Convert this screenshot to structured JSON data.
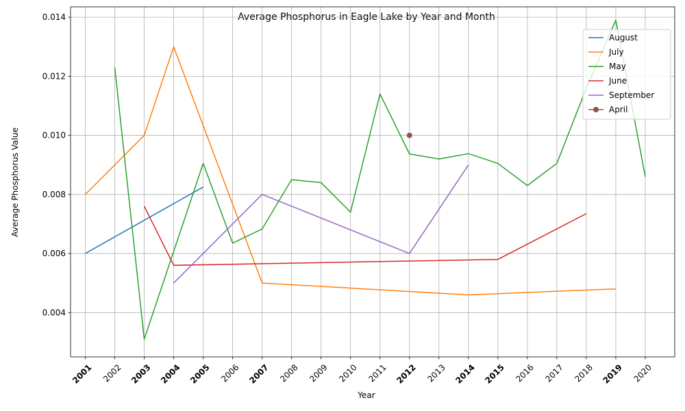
{
  "chart_data": {
    "type": "line",
    "title": "Average Phosphorus in Eagle Lake by Year and Month",
    "xlabel": "Year",
    "ylabel": "Average Phosphorus Value",
    "x_ticks": [
      "2001",
      "2002",
      "2003",
      "2004",
      "2005",
      "2006",
      "2007",
      "2008",
      "2009",
      "2010",
      "2011",
      "2012",
      "2013",
      "2014",
      "2015",
      "2016",
      "2017",
      "2018",
      "2019",
      "2020"
    ],
    "bold_years": [
      "2001",
      "2003",
      "2004",
      "2005",
      "2007",
      "2012",
      "2014",
      "2015",
      "2019"
    ],
    "xlim": [
      2000.5,
      2021
    ],
    "ylim": [
      0.0025,
      0.01435
    ],
    "y_ticks": [
      "0.004",
      "0.006",
      "0.008",
      "0.010",
      "0.012",
      "0.014"
    ],
    "y_tick_values": [
      0.004,
      0.006,
      0.008,
      0.01,
      0.012,
      0.014
    ],
    "grid": true,
    "legend_position": "top-right",
    "series": [
      {
        "name": "August",
        "color": "#1f77b4",
        "marker": "none",
        "x": [
          2001,
          2005
        ],
        "y": [
          0.006,
          0.00825
        ]
      },
      {
        "name": "July",
        "color": "#ff7f0e",
        "marker": "none",
        "x": [
          2001,
          2003,
          2004,
          2007,
          2014,
          2019
        ],
        "y": [
          0.008,
          0.01,
          0.013,
          0.005,
          0.0046,
          0.0048
        ]
      },
      {
        "name": "May",
        "color": "#2ca02c",
        "marker": "none",
        "x": [
          2002,
          2003,
          2005,
          2006,
          2007,
          2008,
          2009,
          2010,
          2011,
          2012,
          2013,
          2014,
          2015,
          2016,
          2017,
          2018,
          2019,
          2020
        ],
        "y": [
          0.0123,
          0.0031,
          0.00905,
          0.00635,
          0.00683,
          0.0085,
          0.0084,
          0.0074,
          0.0114,
          0.00937,
          0.0092,
          0.00938,
          0.00905,
          0.0083,
          0.00905,
          0.0116,
          0.0139,
          0.0086
        ]
      },
      {
        "name": "June",
        "color": "#d62728",
        "marker": "none",
        "x": [
          2003,
          2004,
          2015,
          2018
        ],
        "y": [
          0.0076,
          0.0056,
          0.0058,
          0.00735
        ]
      },
      {
        "name": "September",
        "color": "#9467bd",
        "marker": "none",
        "x": [
          2004,
          2007,
          2012,
          2014
        ],
        "y": [
          0.005,
          0.008,
          0.006,
          0.009
        ]
      },
      {
        "name": "April",
        "color": "#8c564b",
        "marker": "circle",
        "x": [
          2012
        ],
        "y": [
          0.01
        ]
      }
    ]
  }
}
